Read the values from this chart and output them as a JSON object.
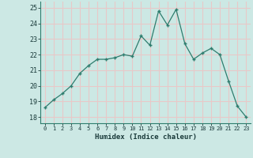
{
  "x": [
    0,
    1,
    2,
    3,
    4,
    5,
    6,
    7,
    8,
    9,
    10,
    11,
    12,
    13,
    14,
    15,
    16,
    17,
    18,
    19,
    20,
    21,
    22,
    23
  ],
  "y": [
    18.6,
    19.1,
    19.5,
    20.0,
    20.8,
    21.3,
    21.7,
    21.7,
    21.8,
    22.0,
    21.9,
    23.2,
    22.6,
    24.8,
    23.9,
    24.9,
    22.7,
    21.7,
    22.1,
    22.4,
    22.0,
    20.3,
    18.7,
    18.0
  ],
  "line_color": "#2e7d6e",
  "marker": "+",
  "marker_size": 3,
  "bg_color": "#cce8e4",
  "grid_color": "#e8c8c8",
  "xlabel": "Humidex (Indice chaleur)",
  "ylabel_ticks": [
    18,
    19,
    20,
    21,
    22,
    23,
    24,
    25
  ],
  "xtick_labels": [
    "0",
    "1",
    "2",
    "3",
    "4",
    "5",
    "6",
    "7",
    "8",
    "9",
    "10",
    "11",
    "12",
    "13",
    "14",
    "15",
    "16",
    "17",
    "18",
    "19",
    "20",
    "21",
    "22",
    "23"
  ],
  "ylim": [
    17.6,
    25.4
  ],
  "xlim": [
    -0.5,
    23.5
  ]
}
